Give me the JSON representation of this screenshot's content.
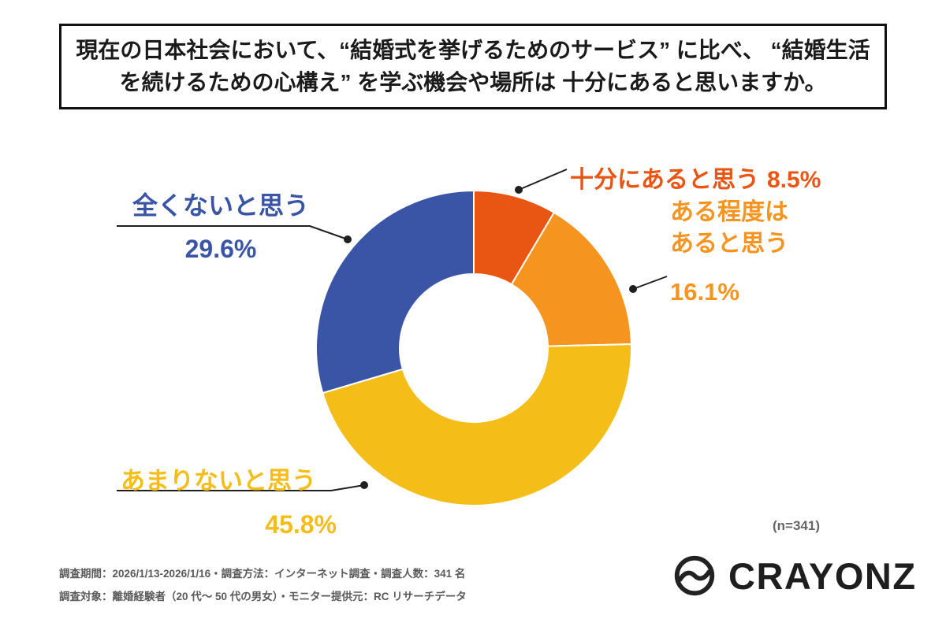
{
  "title": {
    "lines": [
      "現在の日本社会において、“結婚式を挙げるためのサービス” に比べ、",
      "“結婚生活を続けるための心構え” を学ぶ機会や場所は",
      "十分にあると思いますか。"
    ]
  },
  "chart_data": {
    "type": "pie",
    "subtype": "donut",
    "title": "現在の日本社会において、“結婚式を挙げるためのサービス”に比べ、“結婚生活を続けるための心構え”を学ぶ機会や場所は十分にあると思いますか。",
    "start_angle_deg": -90,
    "direction": "clockwise",
    "legend": "callouts",
    "sample_size_label": "(n=341)",
    "sample_size": 341,
    "slices": [
      {
        "label": "十分にあると思う",
        "value": 8.5,
        "pct_label": "8.5%",
        "color": "#E95513"
      },
      {
        "label": "ある程度はあると思う",
        "value": 16.1,
        "pct_label": "16.1%",
        "color": "#F5941E"
      },
      {
        "label": "あまりないと思う",
        "value": 45.8,
        "pct_label": "45.8%",
        "color": "#F4BD17"
      },
      {
        "label": "全くないと思う",
        "value": 29.6,
        "pct_label": "29.6%",
        "color": "#3A55A5"
      }
    ]
  },
  "callouts": {
    "sufficient": {
      "label": "十分にあると思う",
      "pct": "8.5%"
    },
    "somewhat": {
      "label_line1": "ある程度は",
      "label_line2": "あると思う",
      "pct": "16.1%"
    },
    "not_much": {
      "label": "あまりないと思う",
      "pct": "45.8%"
    },
    "none": {
      "label": "全くないと思う",
      "pct": "29.6%"
    }
  },
  "footer": {
    "line1": "調査期間：2026/1/13-2026/1/16・調査方法：インターネット調査・調査人数：341 名",
    "line2": "調査対象：離婚経験者（20 代〜 50 代の男女）・モニター提供元：RC リサーチデータ"
  },
  "brand": {
    "name": "CRAYONZ"
  }
}
